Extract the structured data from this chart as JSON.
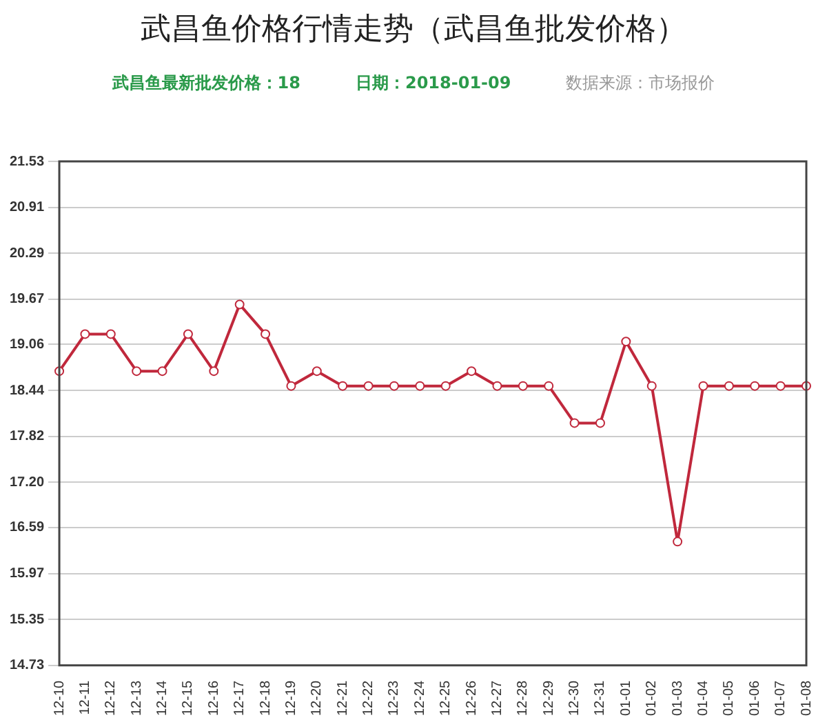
{
  "chart_data": {
    "type": "line",
    "title": "武昌鱼价格行情走势（武昌鱼批发价格）",
    "subtitle": "武昌鱼最新批发价格：18",
    "annotations": [
      "日期：2018-01-09",
      "数据来源：市场报价"
    ],
    "categories": [
      "12-10",
      "12-11",
      "12-12",
      "12-13",
      "12-14",
      "12-15",
      "12-16",
      "12-17",
      "12-18",
      "12-19",
      "12-20",
      "12-21",
      "12-22",
      "12-23",
      "12-24",
      "12-25",
      "12-26",
      "12-27",
      "12-28",
      "12-29",
      "12-30",
      "12-31",
      "01-01",
      "01-02",
      "01-03",
      "01-04",
      "01-05",
      "01-06",
      "01-07",
      "01-08"
    ],
    "series": [
      {
        "color": "#c0283c",
        "values": [
          18.7,
          19.2,
          19.2,
          18.7,
          18.7,
          19.2,
          18.7,
          19.6,
          19.2,
          18.5,
          18.7,
          18.5,
          18.5,
          18.5,
          18.5,
          18.5,
          18.7,
          18.5,
          18.5,
          18.5,
          18.0,
          18.0,
          19.1,
          18.5,
          16.4,
          18.5,
          18.5,
          18.5,
          18.5,
          18.5
        ]
      }
    ],
    "ylim": [
      14.73,
      21.53
    ],
    "yticks": [
      14.73,
      15.35,
      15.97,
      16.59,
      {
        "value": 17.2,
        "label": "17.20"
      },
      17.82,
      18.44,
      19.06,
      19.67,
      20.29,
      20.91,
      21.53
    ],
    "grid": "y",
    "legend": false,
    "marker": "circle",
    "line_style": "solid"
  }
}
